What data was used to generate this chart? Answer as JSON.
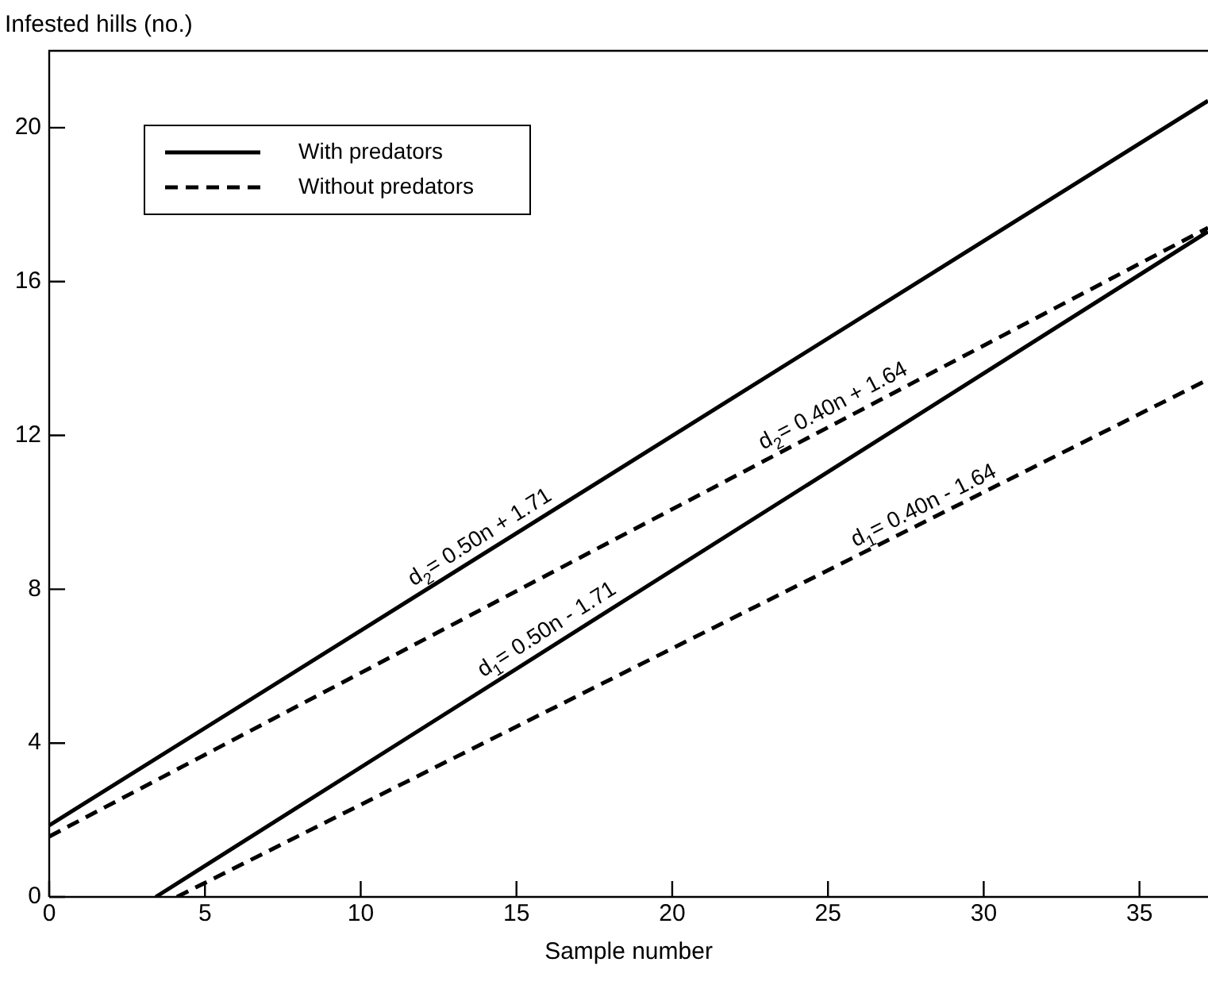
{
  "chart_data": {
    "type": "line",
    "xlabel": "Sample number",
    "ylabel": "Infested hills (no.)",
    "xlim": [
      0,
      37.2
    ],
    "ylim": [
      0,
      22
    ],
    "xticks": [
      0,
      5,
      10,
      15,
      20,
      25,
      30,
      35
    ],
    "yticks": [
      0,
      4,
      8,
      12,
      16,
      20
    ],
    "grid": false,
    "legend": "top left",
    "series": [
      {
        "name": "With predators",
        "color": "#000000",
        "line_style": "solid",
        "x": [
          0,
          37.2
        ],
        "values": [
          1.86,
          20.7
        ]
      },
      {
        "name": "Without predators",
        "color": "#000000",
        "line_style": "dashed",
        "x": [
          0,
          37.2
        ],
        "values": [
          1.57,
          17.4
        ]
      },
      {
        "color": "#000000",
        "line_style": "solid",
        "x": [
          3.42,
          37.2
        ],
        "values": [
          0,
          17.3
        ]
      },
      {
        "color": "#000000",
        "line_style": "dashed",
        "x": [
          4.1,
          37.2
        ],
        "values": [
          0,
          13.45
        ]
      }
    ],
    "annotations": [
      {
        "text": "d$_{2}$= 0.50n + 1.71",
        "x": 14.1,
        "y": 9.0
      },
      {
        "text": "d$_{2}$= 0.40n + 1.64",
        "x": 25.4,
        "y": 12.4
      },
      {
        "text": "d$_{1}$= 0.50n - 1.71",
        "x": 16.25,
        "y": 6.6
      },
      {
        "text": "d$_{1}$= 0.40n - 1.64",
        "x": 28.3,
        "y": 9.8
      }
    ]
  }
}
